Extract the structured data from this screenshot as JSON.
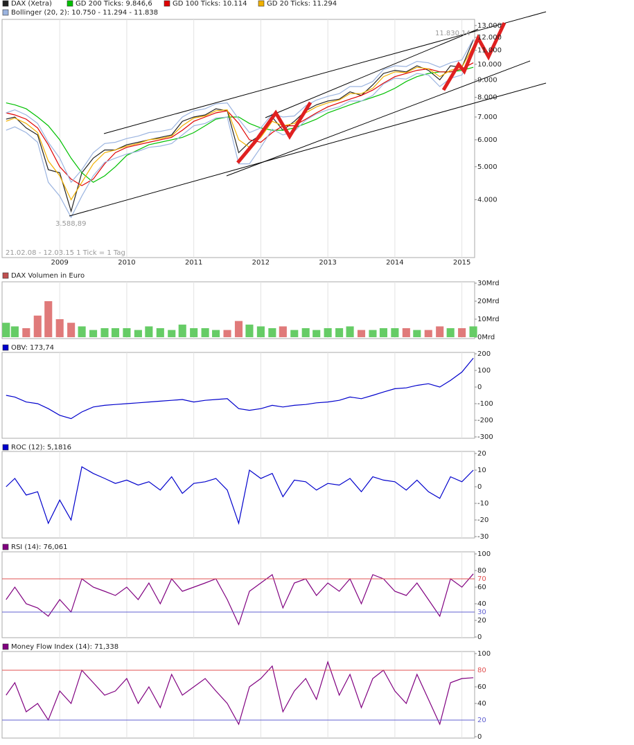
{
  "chart_data": [
    {
      "type": "line",
      "log_scale": true,
      "grid": "x",
      "xtick_labels": true,
      "x": [
        2008.2,
        2008.33,
        2008.5,
        2008.67,
        2008.83,
        2009,
        2009.17,
        2009.33,
        2009.5,
        2009.67,
        2009.83,
        2010,
        2010.17,
        2010.33,
        2010.5,
        2010.67,
        2010.83,
        2011,
        2011.17,
        2011.33,
        2011.5,
        2011.67,
        2011.83,
        2012,
        2012.17,
        2012.33,
        2012.5,
        2012.67,
        2012.83,
        2013,
        2013.17,
        2013.33,
        2013.5,
        2013.67,
        2013.83,
        2014,
        2014.17,
        2014.33,
        2014.5,
        2014.67,
        2014.83,
        2015,
        2015.17
      ],
      "xlim": [
        2008.14,
        2015.19
      ],
      "xticks": [
        2009,
        2010,
        2011,
        2012,
        2013,
        2014,
        2015
      ],
      "ylim": [
        2730,
        13550
      ],
      "yticks": [
        {
          "value": 4000,
          "label": "4.000"
        },
        {
          "value": 5000,
          "label": "5.000"
        },
        {
          "value": 6000,
          "label": "6.000"
        },
        {
          "value": 7000,
          "label": "7.000"
        },
        {
          "value": 8000,
          "label": "8.000"
        },
        {
          "value": 9000,
          "label": "9.000"
        },
        {
          "value": 10000,
          "label": "10.000"
        },
        {
          "value": 11000,
          "label": "11.000"
        },
        {
          "value": 12000,
          "label": "12.000"
        },
        {
          "value": 13000,
          "label": "13.000"
        }
      ],
      "series": [
        {
          "name": "DAX (Xetra)",
          "color": "#222222",
          "values": [
            6900,
            7000,
            6500,
            6200,
            4900,
            4800,
            3700,
            4800,
            5300,
            5600,
            5600,
            5800,
            5900,
            6000,
            6100,
            6200,
            6800,
            7000,
            7100,
            7400,
            7300,
            5500,
            5900,
            6200,
            7000,
            6400,
            6800,
            7300,
            7600,
            7800,
            7900,
            8300,
            8100,
            8700,
            9400,
            9600,
            9500,
            9900,
            9600,
            9000,
            9900,
            9800,
            11800
          ]
        },
        {
          "name": "GD 200 Ticks: 9.846,6",
          "color": "#00c000",
          "values": [
            7700,
            7600,
            7400,
            7000,
            6600,
            6000,
            5300,
            4800,
            4500,
            4700,
            5000,
            5400,
            5600,
            5800,
            5900,
            6000,
            6100,
            6300,
            6600,
            6900,
            7000,
            7000,
            6700,
            6500,
            6400,
            6400,
            6500,
            6700,
            6900,
            7200,
            7400,
            7600,
            7800,
            8000,
            8200,
            8500,
            8900,
            9200,
            9400,
            9500,
            9500,
            9600,
            9800
          ]
        },
        {
          "name": "GD 100 Ticks: 10.114",
          "color": "#e00000",
          "values": [
            7200,
            7100,
            6900,
            6500,
            5800,
            5000,
            4600,
            4400,
            4600,
            5100,
            5500,
            5700,
            5800,
            5900,
            6000,
            6100,
            6400,
            6800,
            7000,
            7200,
            7300,
            6700,
            6000,
            5900,
            6300,
            6600,
            6600,
            6900,
            7200,
            7500,
            7700,
            7900,
            8100,
            8400,
            8800,
            9200,
            9400,
            9600,
            9700,
            9500,
            9500,
            9700,
            10100
          ]
        },
        {
          "name": "GD 20 Ticks: 11.294",
          "color": "#f0b000",
          "values": [
            6800,
            6950,
            6700,
            6300,
            5200,
            4700,
            4000,
            4500,
            5100,
            5500,
            5600,
            5750,
            5850,
            6000,
            6050,
            6150,
            6600,
            6950,
            7050,
            7300,
            7350,
            6000,
            5700,
            6100,
            6800,
            6600,
            6700,
            7200,
            7500,
            7700,
            7850,
            8200,
            8200,
            8500,
            9200,
            9500,
            9450,
            9800,
            9700,
            9200,
            9600,
            9800,
            11300
          ]
        },
        {
          "name": "Bollinger (20, 2): 10.750 - 11.294 - 11.838",
          "color": "#9bb4e0",
          "upper": [
            7200,
            7350,
            7100,
            6700,
            5900,
            5300,
            4500,
            4900,
            5500,
            5850,
            5900,
            6050,
            6150,
            6300,
            6350,
            6450,
            7000,
            7300,
            7400,
            7650,
            7700,
            6900,
            6300,
            6500,
            7150,
            7000,
            7050,
            7550,
            7850,
            8050,
            8200,
            8600,
            8600,
            8900,
            9650,
            9900,
            9850,
            10200,
            10100,
            9800,
            10100,
            10300,
            11850
          ],
          "lower": [
            6400,
            6550,
            6300,
            5900,
            4500,
            4100,
            3550,
            4100,
            4700,
            5150,
            5300,
            5450,
            5550,
            5700,
            5750,
            5850,
            6200,
            6600,
            6700,
            6950,
            7000,
            5100,
            5100,
            5700,
            6450,
            6200,
            6350,
            6850,
            7150,
            7350,
            7500,
            7800,
            7800,
            8100,
            8750,
            9100,
            9050,
            9400,
            9300,
            8600,
            9100,
            9300,
            10750
          ]
        }
      ],
      "annotations": [
        "11.830,14",
        "3.588,89",
        "21.02.08 - 12.03.15   1 Tick = 1 Tag"
      ]
    },
    {
      "type": "bar",
      "grid": "x",
      "xtick_labels": false,
      "up_color": "#66cc66",
      "down_color": "#e07a7a",
      "x": [
        2008.2,
        2008.33,
        2008.5,
        2008.67,
        2008.83,
        2009,
        2009.17,
        2009.33,
        2009.5,
        2009.67,
        2009.83,
        2010,
        2010.17,
        2010.33,
        2010.5,
        2010.67,
        2010.83,
        2011,
        2011.17,
        2011.33,
        2011.5,
        2011.67,
        2011.83,
        2012,
        2012.17,
        2012.33,
        2012.5,
        2012.67,
        2012.83,
        2013,
        2013.17,
        2013.33,
        2013.5,
        2013.67,
        2013.83,
        2014,
        2014.17,
        2014.33,
        2014.5,
        2014.67,
        2014.83,
        2015,
        2015.17
      ],
      "xlim": [
        2008.14,
        2015.19
      ],
      "xticks": [
        2009,
        2010,
        2011,
        2012,
        2013,
        2014,
        2015
      ],
      "ylim": [
        0,
        30
      ],
      "yticks": [
        {
          "value": 0,
          "label": "0Mrd"
        },
        {
          "value": 10,
          "label": "10Mrd"
        },
        {
          "value": 20,
          "label": "20Mrd"
        },
        {
          "value": 30,
          "label": "30Mrd"
        }
      ],
      "series": [
        {
          "name": "DAX Volumen in Euro",
          "color": "#c05050",
          "values": [
            8,
            6,
            5,
            12,
            20,
            10,
            8,
            6,
            4,
            5,
            5,
            5,
            4,
            6,
            5,
            4,
            7,
            5,
            5,
            4,
            4,
            9,
            7,
            6,
            5,
            6,
            4,
            5,
            4,
            5,
            5,
            6,
            4,
            4,
            5,
            5,
            5,
            4,
            4,
            6,
            5,
            5,
            6
          ]
        }
      ]
    },
    {
      "type": "line",
      "grid": "x",
      "xtick_labels": false,
      "x": [
        2008.2,
        2008.33,
        2008.5,
        2008.67,
        2008.83,
        2009,
        2009.17,
        2009.33,
        2009.5,
        2009.67,
        2009.83,
        2010,
        2010.17,
        2010.33,
        2010.5,
        2010.67,
        2010.83,
        2011,
        2011.17,
        2011.33,
        2011.5,
        2011.67,
        2011.83,
        2012,
        2012.17,
        2012.33,
        2012.5,
        2012.67,
        2012.83,
        2013,
        2013.17,
        2013.33,
        2013.5,
        2013.67,
        2013.83,
        2014,
        2014.17,
        2014.33,
        2014.5,
        2014.67,
        2014.83,
        2015,
        2015.17
      ],
      "xlim": [
        2008.14,
        2015.19
      ],
      "xticks": [
        2009,
        2010,
        2011,
        2012,
        2013,
        2014,
        2015
      ],
      "ylim": [
        -300,
        200
      ],
      "yticks": [
        -300,
        -200,
        -100,
        0,
        100,
        200
      ],
      "series": [
        {
          "name": "OBV: 173,74",
          "color": "#0000cc",
          "values": [
            -50,
            -60,
            -90,
            -100,
            -130,
            -170,
            -190,
            -150,
            -120,
            -110,
            -105,
            -100,
            -95,
            -90,
            -85,
            -80,
            -75,
            -90,
            -80,
            -75,
            -70,
            -130,
            -140,
            -130,
            -110,
            -120,
            -110,
            -105,
            -95,
            -90,
            -80,
            -60,
            -70,
            -50,
            -30,
            -10,
            -5,
            10,
            20,
            0,
            40,
            90,
            174
          ]
        }
      ]
    },
    {
      "type": "line",
      "grid": "x",
      "xtick_labels": false,
      "x": [
        2008.2,
        2008.33,
        2008.5,
        2008.67,
        2008.83,
        2009,
        2009.17,
        2009.33,
        2009.5,
        2009.67,
        2009.83,
        2010,
        2010.17,
        2010.33,
        2010.5,
        2010.67,
        2010.83,
        2011,
        2011.17,
        2011.33,
        2011.5,
        2011.67,
        2011.83,
        2012,
        2012.17,
        2012.33,
        2012.5,
        2012.67,
        2012.83,
        2013,
        2013.17,
        2013.33,
        2013.5,
        2013.67,
        2013.83,
        2014,
        2014.17,
        2014.33,
        2014.5,
        2014.67,
        2014.83,
        2015,
        2015.17
      ],
      "xlim": [
        2008.14,
        2015.19
      ],
      "xticks": [
        2009,
        2010,
        2011,
        2012,
        2013,
        2014,
        2015
      ],
      "ylim": [
        -30,
        20
      ],
      "yticks": [
        -30,
        -20,
        -10,
        0,
        10,
        20
      ],
      "series": [
        {
          "name": "ROC (12): 5,1816",
          "color": "#0000cc",
          "values": [
            0,
            5,
            -5,
            -3,
            -22,
            -8,
            -20,
            12,
            8,
            5,
            2,
            4,
            1,
            3,
            -2,
            6,
            -4,
            2,
            3,
            5,
            -2,
            -22,
            10,
            5,
            8,
            -6,
            4,
            3,
            -2,
            2,
            1,
            5,
            -3,
            6,
            4,
            3,
            -2,
            4,
            -3,
            -7,
            6,
            3,
            10
          ]
        }
      ]
    },
    {
      "type": "line",
      "grid": "x",
      "xtick_labels": false,
      "x": [
        2008.2,
        2008.33,
        2008.5,
        2008.67,
        2008.83,
        2009,
        2009.17,
        2009.33,
        2009.5,
        2009.67,
        2009.83,
        2010,
        2010.17,
        2010.33,
        2010.5,
        2010.67,
        2010.83,
        2011,
        2011.17,
        2011.33,
        2011.5,
        2011.67,
        2011.83,
        2012,
        2012.17,
        2012.33,
        2012.5,
        2012.67,
        2012.83,
        2013,
        2013.17,
        2013.33,
        2013.5,
        2013.67,
        2013.83,
        2014,
        2014.17,
        2014.33,
        2014.5,
        2014.67,
        2014.83,
        2015,
        2015.17
      ],
      "xlim": [
        2008.14,
        2015.19
      ],
      "xticks": [
        2009,
        2010,
        2011,
        2012,
        2013,
        2014,
        2015
      ],
      "ylim": [
        0,
        100
      ],
      "yticks": [
        0,
        20,
        40,
        60,
        80,
        100
      ],
      "reference_lines": [
        {
          "value": 70,
          "color": "#e05050"
        },
        {
          "value": 30,
          "color": "#6060d0"
        }
      ],
      "series": [
        {
          "name": "RSI (14): 76,061",
          "color": "#800080",
          "values": [
            45,
            60,
            40,
            35,
            25,
            45,
            30,
            70,
            60,
            55,
            50,
            60,
            45,
            65,
            40,
            70,
            55,
            60,
            65,
            70,
            45,
            15,
            55,
            65,
            75,
            35,
            65,
            70,
            50,
            65,
            55,
            70,
            40,
            75,
            70,
            55,
            50,
            65,
            45,
            25,
            70,
            60,
            76
          ]
        }
      ]
    },
    {
      "type": "line",
      "grid": "x",
      "xtick_labels": false,
      "x": [
        2008.2,
        2008.33,
        2008.5,
        2008.67,
        2008.83,
        2009,
        2009.17,
        2009.33,
        2009.5,
        2009.67,
        2009.83,
        2010,
        2010.17,
        2010.33,
        2010.5,
        2010.67,
        2010.83,
        2011,
        2011.17,
        2011.33,
        2011.5,
        2011.67,
        2011.83,
        2012,
        2012.17,
        2012.33,
        2012.5,
        2012.67,
        2012.83,
        2013,
        2013.17,
        2013.33,
        2013.5,
        2013.67,
        2013.83,
        2014,
        2014.17,
        2014.33,
        2014.5,
        2014.67,
        2014.83,
        2015,
        2015.17
      ],
      "xlim": [
        2008.14,
        2015.19
      ],
      "xticks": [
        2009,
        2010,
        2011,
        2012,
        2013,
        2014,
        2015
      ],
      "ylim": [
        0,
        100
      ],
      "yticks": [
        0,
        40,
        60,
        100
      ],
      "reference_lines": [
        {
          "value": 80,
          "color": "#e05050"
        },
        {
          "value": 20,
          "color": "#6060d0"
        }
      ],
      "series": [
        {
          "name": "Money Flow Index (14): 71,338",
          "color": "#800080",
          "values": [
            50,
            65,
            30,
            40,
            20,
            55,
            40,
            80,
            65,
            50,
            55,
            70,
            40,
            60,
            35,
            75,
            50,
            60,
            70,
            55,
            40,
            15,
            60,
            70,
            85,
            30,
            55,
            70,
            45,
            90,
            50,
            75,
            35,
            70,
            80,
            55,
            40,
            75,
            45,
            15,
            65,
            70,
            71
          ]
        }
      ]
    }
  ]
}
